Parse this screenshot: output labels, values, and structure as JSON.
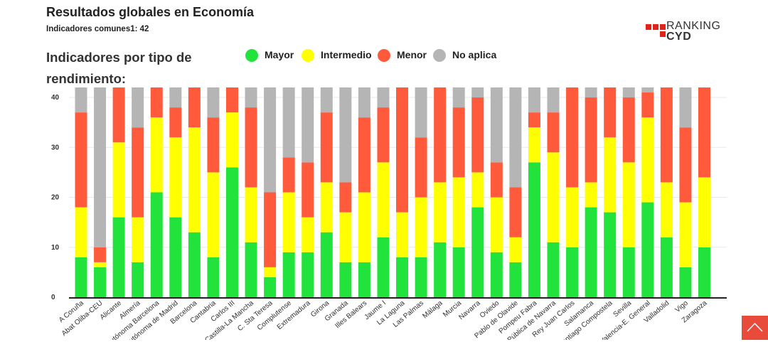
{
  "header": {
    "title": "Resultados globales en Economía",
    "subtitle": "Indicadores comunes1: 42"
  },
  "logo": {
    "line1": "RANKING",
    "line2": "CYD",
    "accent": "#e2231a"
  },
  "section": {
    "title": "Indicadores por tipo de rendimiento:"
  },
  "scroll_button": {
    "icon": "chevron-up-icon",
    "color": "#e84b3a"
  },
  "chart_data": {
    "type": "bar",
    "stacked": true,
    "ylim": [
      0,
      42
    ],
    "yticks": [
      0,
      10,
      20,
      30,
      40
    ],
    "grid": true,
    "legend_position": "top",
    "categories": [
      "A Coruña",
      "Abat Oliba-CEU",
      "Alicante",
      "Almería",
      "Autónoma Barcelona",
      "Autónoma de Madrid",
      "Barcelona",
      "Cantabria",
      "Carlos III",
      "Castilla-La Mancha",
      "C. Sta Teresa",
      "Complutense",
      "Extremadura",
      "Girona",
      "Granada",
      "Illes Balears",
      "Jaume I",
      "La Laguna",
      "Las Palmas",
      "Málaga",
      "Murcia",
      "Navarra",
      "Oviedo",
      "Pablo de Olavide",
      "Pompeu Fabra",
      "Pública de Navarra",
      "Rey Juan Carlos",
      "Salamanca",
      "Santiago Compostela",
      "Sevilla",
      "Valencia-E. General",
      "Valladolid",
      "Vigo",
      "Zaragoza"
    ],
    "series": [
      {
        "name": "Mayor",
        "color": "#22e33c",
        "values": [
          8,
          6,
          16,
          7,
          21,
          16,
          13,
          8,
          26,
          11,
          4,
          9,
          9,
          13,
          7,
          7,
          12,
          8,
          8,
          11,
          10,
          18,
          9,
          7,
          27,
          11,
          10,
          18,
          17,
          10,
          19,
          12,
          6,
          10
        ]
      },
      {
        "name": "Intermedio",
        "color": "#ffff00",
        "values": [
          10,
          1,
          15,
          9,
          15,
          16,
          21,
          17,
          11,
          11,
          2,
          12,
          7,
          10,
          10,
          14,
          15,
          9,
          12,
          12,
          14,
          7,
          11,
          5,
          7,
          18,
          12,
          5,
          15,
          17,
          17,
          11,
          13,
          14
        ]
      },
      {
        "name": "Menor",
        "color": "#ff5a3c",
        "values": [
          19,
          3,
          11,
          18,
          6,
          6,
          8,
          11,
          5,
          16,
          15,
          7,
          11,
          14,
          6,
          15,
          11,
          25,
          12,
          19,
          14,
          15,
          7,
          10,
          3,
          8,
          20,
          17,
          10,
          13,
          5,
          19,
          15,
          18
        ]
      },
      {
        "name": "No aplica",
        "color": "#b5b5b5",
        "values": [
          5,
          32,
          0,
          8,
          0,
          4,
          0,
          6,
          0,
          4,
          21,
          14,
          15,
          5,
          19,
          6,
          4,
          0,
          10,
          0,
          4,
          2,
          15,
          20,
          5,
          5,
          0,
          2,
          0,
          2,
          1,
          0,
          8,
          0
        ]
      }
    ]
  }
}
